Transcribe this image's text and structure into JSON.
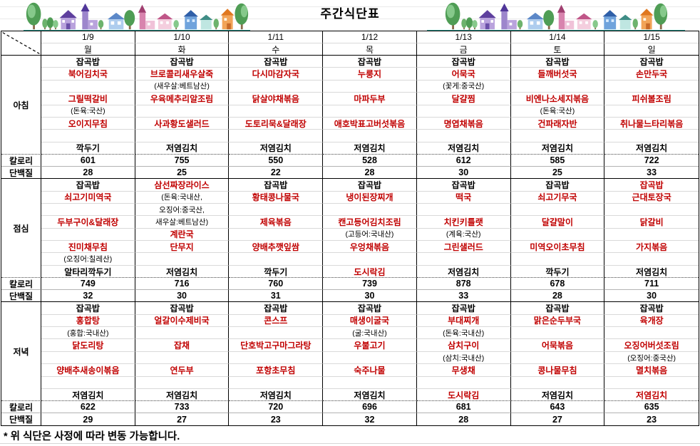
{
  "title": "주간식단표",
  "footnote": "* 위 식단은 사정에 따라 변동 가능합니다.",
  "labels": {
    "breakfast": "아침",
    "lunch": "점심",
    "dinner": "저녁",
    "calories": "칼로리",
    "protein": "단백질"
  },
  "colors": {
    "menu_red": "#c00000",
    "text_black": "#000000",
    "deco_underline_teal": "#2e9a8f"
  },
  "decoration": {
    "left": "village-illustration",
    "right": "village-illustration"
  },
  "days": [
    {
      "date": "1/9",
      "day": "월",
      "breakfast": {
        "items": [
          {
            "t": "잡곡밥",
            "c": "k"
          },
          {
            "t": "북어김치국",
            "c": "r"
          },
          {
            "t": "",
            "c": ""
          },
          {
            "t": "그릴떡갈비",
            "c": "r"
          },
          {
            "t": "(돈육:국산)",
            "c": "n"
          },
          {
            "t": "오이지무침",
            "c": "r"
          },
          {
            "t": "",
            "c": ""
          },
          {
            "t": "깍두기",
            "c": "k"
          }
        ],
        "cal": "601",
        "prot": "28"
      },
      "lunch": {
        "items": [
          {
            "t": "잡곡밥",
            "c": "k"
          },
          {
            "t": "쇠고기미역국",
            "c": "r"
          },
          {
            "t": "",
            "c": ""
          },
          {
            "t": "두부구이&달래장",
            "c": "r"
          },
          {
            "t": "",
            "c": ""
          },
          {
            "t": "진미채무침",
            "c": "r"
          },
          {
            "t": "(오징어:칠레산)",
            "c": "n"
          },
          {
            "t": "알타리깍두기",
            "c": "k"
          }
        ],
        "cal": "749",
        "prot": "32"
      },
      "dinner": {
        "items": [
          {
            "t": "잡곡밥",
            "c": "k"
          },
          {
            "t": "홍합탕",
            "c": "r"
          },
          {
            "t": "(홍합:국내산)",
            "c": "n"
          },
          {
            "t": "닭도리탕",
            "c": "r"
          },
          {
            "t": "",
            "c": ""
          },
          {
            "t": "양배추새송이볶음",
            "c": "r"
          },
          {
            "t": "",
            "c": ""
          },
          {
            "t": "저염김치",
            "c": "k"
          }
        ],
        "cal": "622",
        "prot": "29"
      }
    },
    {
      "date": "1/10",
      "day": "화",
      "breakfast": {
        "items": [
          {
            "t": "잡곡밥",
            "c": "k"
          },
          {
            "t": "브로콜리새우살죽",
            "c": "r"
          },
          {
            "t": "(새우살:베트남산)",
            "c": "n"
          },
          {
            "t": "우육메추리알조림",
            "c": "r"
          },
          {
            "t": "",
            "c": ""
          },
          {
            "t": "사과황도샐러드",
            "c": "r"
          },
          {
            "t": "",
            "c": ""
          },
          {
            "t": "저염김치",
            "c": "k"
          }
        ],
        "cal": "755",
        "prot": "25"
      },
      "lunch": {
        "items": [
          {
            "t": "삼선짜장라이스",
            "c": "r"
          },
          {
            "t": "(돈육:국내산,",
            "c": "n"
          },
          {
            "t": "오징어:중국산,",
            "c": "n"
          },
          {
            "t": "새우살:베트남산)",
            "c": "n"
          },
          {
            "t": "계란국",
            "c": "r"
          },
          {
            "t": "단무지",
            "c": "r"
          },
          {
            "t": "",
            "c": ""
          },
          {
            "t": "저염김치",
            "c": "k"
          }
        ],
        "cal": "716",
        "prot": "30"
      },
      "dinner": {
        "items": [
          {
            "t": "잡곡밥",
            "c": "k"
          },
          {
            "t": "얼갈이수제비국",
            "c": "r"
          },
          {
            "t": "",
            "c": ""
          },
          {
            "t": "잡채",
            "c": "r"
          },
          {
            "t": "",
            "c": ""
          },
          {
            "t": "연두부",
            "c": "r"
          },
          {
            "t": "",
            "c": ""
          },
          {
            "t": "저염김치",
            "c": "k"
          }
        ],
        "cal": "733",
        "prot": "27"
      }
    },
    {
      "date": "1/11",
      "day": "수",
      "breakfast": {
        "items": [
          {
            "t": "잡곡밥",
            "c": "k"
          },
          {
            "t": "다시마감자국",
            "c": "r"
          },
          {
            "t": "",
            "c": ""
          },
          {
            "t": "닭살야채볶음",
            "c": "r"
          },
          {
            "t": "",
            "c": ""
          },
          {
            "t": "도토리묵&달래장",
            "c": "r"
          },
          {
            "t": "",
            "c": ""
          },
          {
            "t": "저염김치",
            "c": "k"
          }
        ],
        "cal": "550",
        "prot": "22"
      },
      "lunch": {
        "items": [
          {
            "t": "잡곡밥",
            "c": "k"
          },
          {
            "t": "황태콩나물국",
            "c": "r"
          },
          {
            "t": "",
            "c": ""
          },
          {
            "t": "제육볶음",
            "c": "r"
          },
          {
            "t": "",
            "c": ""
          },
          {
            "t": "양배추깻잎쌈",
            "c": "r"
          },
          {
            "t": "",
            "c": ""
          },
          {
            "t": "깍두기",
            "c": "k"
          }
        ],
        "cal": "760",
        "prot": "31"
      },
      "dinner": {
        "items": [
          {
            "t": "잡곡밥",
            "c": "k"
          },
          {
            "t": "콘스프",
            "c": "r"
          },
          {
            "t": "",
            "c": ""
          },
          {
            "t": "단호박고구마그라탕",
            "c": "r"
          },
          {
            "t": "",
            "c": ""
          },
          {
            "t": "포항초무침",
            "c": "r"
          },
          {
            "t": "",
            "c": ""
          },
          {
            "t": "저염김치",
            "c": "k"
          }
        ],
        "cal": "720",
        "prot": "23"
      }
    },
    {
      "date": "1/12",
      "day": "목",
      "breakfast": {
        "items": [
          {
            "t": "잡곡밥",
            "c": "k"
          },
          {
            "t": "누룽지",
            "c": "r"
          },
          {
            "t": "",
            "c": ""
          },
          {
            "t": "마파두부",
            "c": "r"
          },
          {
            "t": "",
            "c": ""
          },
          {
            "t": "애호박표고버섯볶음",
            "c": "r"
          },
          {
            "t": "",
            "c": ""
          },
          {
            "t": "저염김치",
            "c": "k"
          }
        ],
        "cal": "528",
        "prot": "28"
      },
      "lunch": {
        "items": [
          {
            "t": "잡곡밥",
            "c": "k"
          },
          {
            "t": "냉이된장찌개",
            "c": "r"
          },
          {
            "t": "",
            "c": ""
          },
          {
            "t": "캔고등어김치조림",
            "c": "r"
          },
          {
            "t": "(고등어:국내산)",
            "c": "n"
          },
          {
            "t": "우엉채볶음",
            "c": "r"
          },
          {
            "t": "",
            "c": ""
          },
          {
            "t": "도시락김",
            "c": "r"
          }
        ],
        "cal": "739",
        "prot": "30"
      },
      "dinner": {
        "items": [
          {
            "t": "잡곡밥",
            "c": "k"
          },
          {
            "t": "매생이굴국",
            "c": "r"
          },
          {
            "t": "(굴:국내산)",
            "c": "n"
          },
          {
            "t": "우불고기",
            "c": "r"
          },
          {
            "t": "",
            "c": ""
          },
          {
            "t": "숙주나물",
            "c": "r"
          },
          {
            "t": "",
            "c": ""
          },
          {
            "t": "저염김치",
            "c": "k"
          }
        ],
        "cal": "696",
        "prot": "32"
      }
    },
    {
      "date": "1/13",
      "day": "금",
      "breakfast": {
        "items": [
          {
            "t": "잡곡밥",
            "c": "k"
          },
          {
            "t": "어묵국",
            "c": "r"
          },
          {
            "t": "(꽃게:중국산)",
            "c": "n"
          },
          {
            "t": "달걀찜",
            "c": "r"
          },
          {
            "t": "",
            "c": ""
          },
          {
            "t": "명엽채볶음",
            "c": "r"
          },
          {
            "t": "",
            "c": ""
          },
          {
            "t": "저염김치",
            "c": "k"
          }
        ],
        "cal": "612",
        "prot": "30"
      },
      "lunch": {
        "items": [
          {
            "t": "잡곡밥",
            "c": "k"
          },
          {
            "t": "떡국",
            "c": "r"
          },
          {
            "t": "",
            "c": ""
          },
          {
            "t": "치킨키틀랫",
            "c": "r"
          },
          {
            "t": "(계육:국산)",
            "c": "n"
          },
          {
            "t": "그린샐러드",
            "c": "r"
          },
          {
            "t": "",
            "c": ""
          },
          {
            "t": "저염김치",
            "c": "k"
          }
        ],
        "cal": "878",
        "prot": "33"
      },
      "dinner": {
        "items": [
          {
            "t": "잡곡밥",
            "c": "k"
          },
          {
            "t": "부대찌개",
            "c": "r"
          },
          {
            "t": "(돈육:국내산)",
            "c": "n"
          },
          {
            "t": "삼치구이",
            "c": "r"
          },
          {
            "t": "(삼치:국내산)",
            "c": "n"
          },
          {
            "t": "무생채",
            "c": "r"
          },
          {
            "t": "",
            "c": ""
          },
          {
            "t": "도시락김",
            "c": "r"
          }
        ],
        "cal": "681",
        "prot": "28"
      }
    },
    {
      "date": "1/14",
      "day": "토",
      "breakfast": {
        "items": [
          {
            "t": "잡곡밥",
            "c": "k"
          },
          {
            "t": "들깨버섯국",
            "c": "r"
          },
          {
            "t": "",
            "c": ""
          },
          {
            "t": "비엔나소세지볶음",
            "c": "r"
          },
          {
            "t": "(돈육:국산)",
            "c": "n"
          },
          {
            "t": "건파래자반",
            "c": "r"
          },
          {
            "t": "",
            "c": ""
          },
          {
            "t": "저염김치",
            "c": "k"
          }
        ],
        "cal": "585",
        "prot": "25"
      },
      "lunch": {
        "items": [
          {
            "t": "잡곡밥",
            "c": "k"
          },
          {
            "t": "쇠고기무국",
            "c": "r"
          },
          {
            "t": "",
            "c": ""
          },
          {
            "t": "달걀말이",
            "c": "r"
          },
          {
            "t": "",
            "c": ""
          },
          {
            "t": "미역오이초무침",
            "c": "r"
          },
          {
            "t": "",
            "c": ""
          },
          {
            "t": "깍두기",
            "c": "k"
          }
        ],
        "cal": "678",
        "prot": "28"
      },
      "dinner": {
        "items": [
          {
            "t": "잡곡밥",
            "c": "k"
          },
          {
            "t": "맑은순두부국",
            "c": "r"
          },
          {
            "t": "",
            "c": ""
          },
          {
            "t": "어묵볶음",
            "c": "r"
          },
          {
            "t": "",
            "c": ""
          },
          {
            "t": "콩나물무침",
            "c": "r"
          },
          {
            "t": "",
            "c": ""
          },
          {
            "t": "저염김치",
            "c": "k"
          }
        ],
        "cal": "643",
        "prot": "27"
      }
    },
    {
      "date": "1/15",
      "day": "일",
      "breakfast": {
        "items": [
          {
            "t": "잡곡밥",
            "c": "k"
          },
          {
            "t": "손만두국",
            "c": "r"
          },
          {
            "t": "",
            "c": ""
          },
          {
            "t": "피쉬볼조림",
            "c": "r"
          },
          {
            "t": "",
            "c": ""
          },
          {
            "t": "취나물느타리볶음",
            "c": "r"
          },
          {
            "t": "",
            "c": ""
          },
          {
            "t": "저염김치",
            "c": "k"
          }
        ],
        "cal": "722",
        "prot": "33"
      },
      "lunch": {
        "items": [
          {
            "t": "잡곡밥",
            "c": "r"
          },
          {
            "t": "근대토장국",
            "c": "r"
          },
          {
            "t": "",
            "c": ""
          },
          {
            "t": "닭갈비",
            "c": "r"
          },
          {
            "t": "",
            "c": ""
          },
          {
            "t": "가지볶음",
            "c": "r"
          },
          {
            "t": "",
            "c": ""
          },
          {
            "t": "저염김치",
            "c": "k"
          }
        ],
        "cal": "711",
        "prot": "30"
      },
      "dinner": {
        "items": [
          {
            "t": "잡곡밥",
            "c": "k"
          },
          {
            "t": "육개장",
            "c": "r"
          },
          {
            "t": "",
            "c": ""
          },
          {
            "t": "오징어버섯조림",
            "c": "r"
          },
          {
            "t": "(오징어:중국산)",
            "c": "n"
          },
          {
            "t": "멸치볶음",
            "c": "r"
          },
          {
            "t": "",
            "c": ""
          },
          {
            "t": "저염김치",
            "c": "r"
          }
        ],
        "cal": "635",
        "prot": "23"
      }
    }
  ]
}
